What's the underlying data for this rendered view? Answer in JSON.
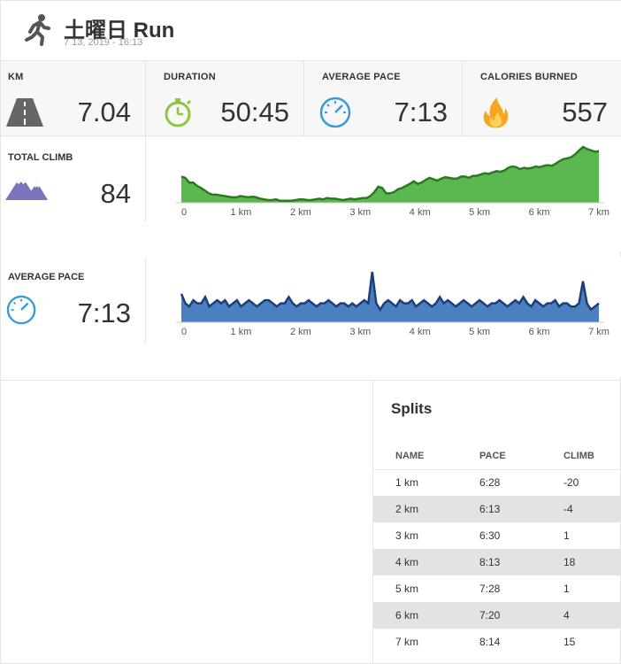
{
  "header": {
    "title": "土曜日 Run",
    "subtitle": "7 13, 2019  -  16:13",
    "icon": "running-person-icon"
  },
  "stats": [
    {
      "label": "KM",
      "value": "7.04",
      "icon": "road-icon"
    },
    {
      "label": "DURATION",
      "value": "50:45",
      "icon": "stopwatch-icon"
    },
    {
      "label": "AVERAGE PACE",
      "value": "7:13",
      "icon": "speedometer-icon"
    },
    {
      "label": "CALORIES BURNED",
      "value": "557",
      "icon": "flame-icon"
    }
  ],
  "climb_section": {
    "label": "TOTAL CLIMB",
    "value": "84",
    "icon": "mountain-icon"
  },
  "pace_section": {
    "label": "AVERAGE PACE",
    "value": "7:13",
    "icon": "speedometer-icon"
  },
  "chart_data": [
    {
      "type": "area",
      "series": [
        {
          "values": [
            39,
            37,
            30,
            30,
            25,
            22,
            18,
            14,
            12,
            12,
            11,
            10,
            9,
            8,
            8,
            10,
            9,
            8,
            9,
            8,
            6,
            5,
            4,
            4,
            5,
            3,
            3,
            3,
            3,
            4,
            5,
            5,
            4,
            4,
            5,
            6,
            5,
            7,
            6,
            6,
            5,
            4,
            5,
            6,
            5,
            6,
            7,
            7,
            10,
            16,
            24,
            22,
            14,
            14,
            16,
            20,
            22,
            25,
            28,
            32,
            28,
            30,
            34,
            37,
            35,
            33,
            36,
            38,
            37,
            36,
            36,
            39,
            39,
            37,
            40,
            40,
            42,
            44,
            43,
            45,
            47,
            46,
            48,
            52,
            54,
            53,
            50,
            52,
            51,
            52,
            54,
            53,
            55,
            56,
            55,
            58,
            62,
            65,
            66,
            68,
            72,
            78,
            83,
            80,
            78,
            76,
            77
          ]
        }
      ],
      "x_tick_labels": [
        "0",
        "1 km",
        "2 km",
        "3 km",
        "4 km",
        "5 km",
        "6 km",
        "7 km"
      ],
      "xlim": [
        0,
        7
      ],
      "colors": {
        "fill": "#5bb74f",
        "line": "#2b7a1f"
      }
    },
    {
      "type": "area",
      "series": [
        {
          "values": [
            6.9,
            6.6,
            6.5,
            6.7,
            6.6,
            6.6,
            6.8,
            6.5,
            6.6,
            6.7,
            6.6,
            6.7,
            6.5,
            6.6,
            6.7,
            6.5,
            6.6,
            6.7,
            6.6,
            6.5,
            6.6,
            6.7,
            6.7,
            6.6,
            6.5,
            6.6,
            6.6,
            6.8,
            6.6,
            6.5,
            6.6,
            6.6,
            6.7,
            6.6,
            6.5,
            6.6,
            6.6,
            6.7,
            6.6,
            6.5,
            6.6,
            6.6,
            6.5,
            6.6,
            6.5,
            6.6,
            6.7,
            6.6,
            7.6,
            6.6,
            6.4,
            6.6,
            6.7,
            6.6,
            6.5,
            6.7,
            6.6,
            6.6,
            6.7,
            6.5,
            6.6,
            6.7,
            6.6,
            6.5,
            6.6,
            6.8,
            6.6,
            6.7,
            6.6,
            6.5,
            6.6,
            6.7,
            6.6,
            6.5,
            6.6,
            6.7,
            6.6,
            6.5,
            6.6,
            6.6,
            6.7,
            6.6,
            6.5,
            6.6,
            6.7,
            6.6,
            6.8,
            6.6,
            6.5,
            6.7,
            6.6,
            6.5,
            6.6,
            6.6,
            6.7,
            6.5,
            6.6,
            6.6,
            6.5,
            6.5,
            6.6,
            7.3,
            6.6,
            6.4,
            6.5,
            6.6
          ]
        }
      ],
      "x_tick_labels": [
        "0",
        "1 km",
        "2 km",
        "3 km",
        "4 km",
        "5 km",
        "6 km",
        "7 km"
      ],
      "xlim": [
        0,
        7
      ],
      "colors": {
        "fill": "#4a7fc0",
        "line": "#1d3f78"
      }
    }
  ],
  "splits": {
    "title": "Splits",
    "headers": [
      "NAME",
      "PACE",
      "CLIMB"
    ],
    "rows": [
      [
        "1 km",
        "6:28",
        "-20"
      ],
      [
        "2 km",
        "6:13",
        "-4"
      ],
      [
        "3 km",
        "6:30",
        "1"
      ],
      [
        "4 km",
        "8:13",
        "18"
      ],
      [
        "5 km",
        "7:28",
        "1"
      ],
      [
        "6 km",
        "7:20",
        "4"
      ],
      [
        "7 km",
        "8:14",
        "15"
      ]
    ]
  }
}
